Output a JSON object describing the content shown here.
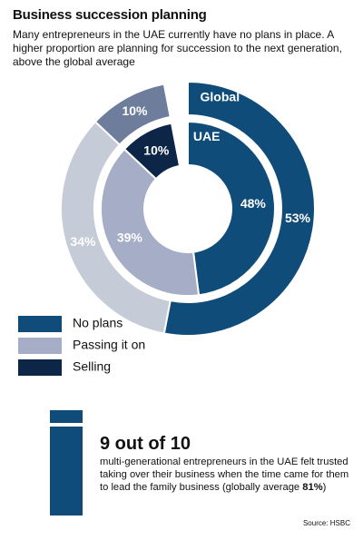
{
  "chart_data": {
    "type": "donut",
    "title": "Business succession planning",
    "subtitle": "Many entrepreneurs in the UAE currently have no plans in place. A higher proportion are planning for succession to the next generation, above the global average",
    "categories": [
      "No plans",
      "Passing it on",
      "Selling"
    ],
    "legend_colors": [
      "#104c79",
      "#a5adc7",
      "#0d2546"
    ],
    "series": [
      {
        "name": "Global",
        "values": [
          53,
          34,
          10
        ],
        "value_labels": [
          "53%",
          "34%",
          "10%"
        ],
        "colors": [
          "#104c79",
          "#c6cbd8",
          "#6f7d9c"
        ]
      },
      {
        "name": "UAE",
        "values": [
          48,
          39,
          10
        ],
        "value_labels": [
          "48%",
          "39%",
          "10%"
        ],
        "colors": [
          "#104c79",
          "#a5adc7",
          "#0d2546"
        ]
      }
    ]
  },
  "stat": {
    "headline": "9 out of 10",
    "text_before": "multi-generational entrepreneurs in the UAE felt trusted taking over their business when the time came for them to lead the family business (globally average ",
    "highlight": "81%",
    "text_after": ")"
  },
  "source": "Source: HSBC"
}
